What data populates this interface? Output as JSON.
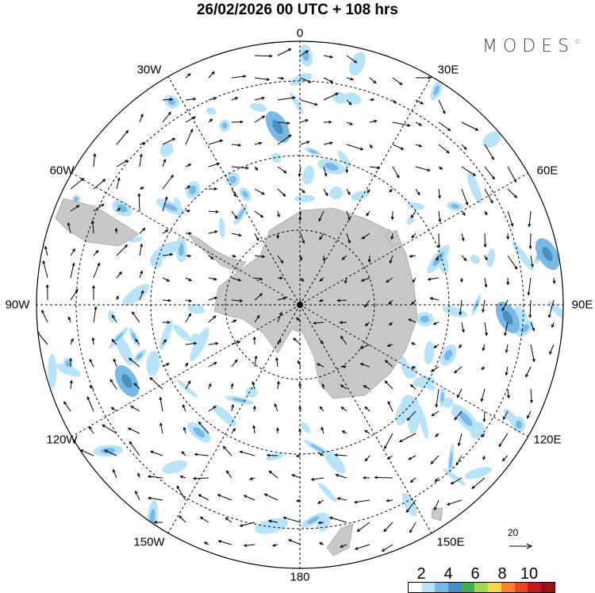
{
  "title": "26/02/2026  00 UTC  + 108 hrs",
  "logo": "MODES",
  "logo_mark": "©",
  "longitude_labels": {
    "0": "0",
    "30E": "30E",
    "60E": "60E",
    "90E": "90E",
    "120E": "120E",
    "150E": "150E",
    "180": "180",
    "150W": "150W",
    "120W": "120W",
    "90W": "90W",
    "60W": "60W",
    "30W": "30W"
  },
  "reference_vector": {
    "label": "20"
  },
  "colorbar": {
    "labels": [
      "2",
      "4",
      "6",
      "8",
      "10"
    ],
    "colors": [
      "#ffffff",
      "#b9e3f8",
      "#79b9e6",
      "#4a8fc0",
      "#45ac5c",
      "#a6d453",
      "#fbd549",
      "#f6812f",
      "#e54528",
      "#c01b20",
      "#951417"
    ]
  },
  "colors": {
    "land": "#c8c8c8",
    "land_edge": "#999999"
  }
}
